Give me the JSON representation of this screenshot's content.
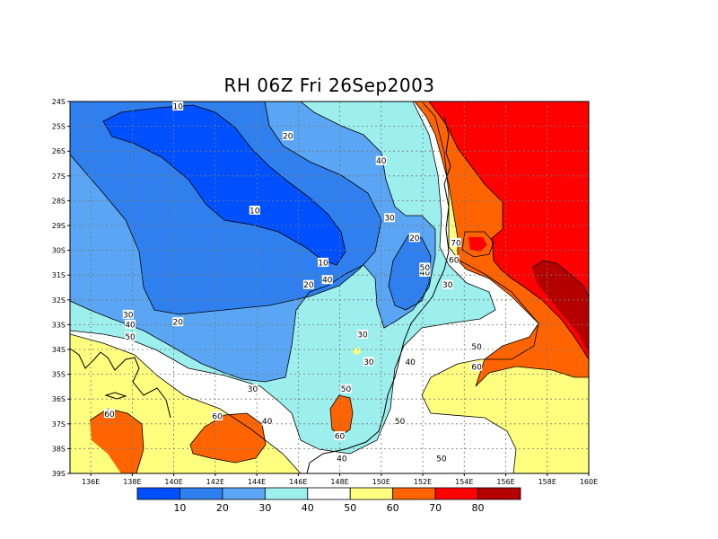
{
  "map": {
    "title": "RH 06Z Fri 26Sep2003",
    "lat_ticks": [
      "24S",
      "25S",
      "26S",
      "27S",
      "28S",
      "29S",
      "30S",
      "31S",
      "32S",
      "33S",
      "34S",
      "35S",
      "36S",
      "37S",
      "38S",
      "39S"
    ],
    "lon_ticks": [
      "136E",
      "138E",
      "140E",
      "142E",
      "144E",
      "146E",
      "148E",
      "150E",
      "152E",
      "154E",
      "156E",
      "158E",
      "160E"
    ],
    "lon_range": [
      135,
      160
    ],
    "lat_range": [
      -24,
      -39
    ],
    "gridlines": true,
    "contour_labels": [
      {
        "text": "10",
        "lon": 140.2,
        "lat": -24.2
      },
      {
        "text": "10",
        "lon": 143.9,
        "lat": -28.4
      },
      {
        "text": "10",
        "lon": 147.2,
        "lat": -30.5
      },
      {
        "text": "20",
        "lon": 145.5,
        "lat": -25.4
      },
      {
        "text": "20",
        "lon": 146.5,
        "lat": -31.4
      },
      {
        "text": "20",
        "lon": 140.2,
        "lat": -32.9
      },
      {
        "text": "20",
        "lon": 151.6,
        "lat": -29.5
      },
      {
        "text": "30",
        "lon": 150.4,
        "lat": -28.7
      },
      {
        "text": "30",
        "lon": 153.2,
        "lat": -31.4
      },
      {
        "text": "30",
        "lon": 137.8,
        "lat": -32.6
      },
      {
        "text": "30",
        "lon": 143.8,
        "lat": -35.6
      },
      {
        "text": "30",
        "lon": 149.1,
        "lat": -33.4
      },
      {
        "text": "30",
        "lon": 149.4,
        "lat": -34.5
      },
      {
        "text": "40",
        "lon": 150.0,
        "lat": -26.4
      },
      {
        "text": "40",
        "lon": 137.9,
        "lat": -33.0
      },
      {
        "text": "40",
        "lon": 147.4,
        "lat": -31.2
      },
      {
        "text": "40",
        "lon": 152.1,
        "lat": -30.9
      },
      {
        "text": "40",
        "lon": 151.4,
        "lat": -34.5
      },
      {
        "text": "40",
        "lon": 144.5,
        "lat": -36.9
      },
      {
        "text": "40",
        "lon": 148.1,
        "lat": -38.4
      },
      {
        "text": "50",
        "lon": 152.1,
        "lat": -30.7
      },
      {
        "text": "50",
        "lon": 137.9,
        "lat": -33.5
      },
      {
        "text": "50",
        "lon": 154.6,
        "lat": -33.9
      },
      {
        "text": "50",
        "lon": 148.3,
        "lat": -35.6
      },
      {
        "text": "50",
        "lon": 150.9,
        "lat": -36.9
      },
      {
        "text": "50",
        "lon": 152.9,
        "lat": -38.4
      },
      {
        "text": "60",
        "lon": 153.5,
        "lat": -30.4
      },
      {
        "text": "60",
        "lon": 136.9,
        "lat": -36.6
      },
      {
        "text": "60",
        "lon": 142.1,
        "lat": -36.7
      },
      {
        "text": "60",
        "lon": 148.0,
        "lat": -37.5
      },
      {
        "text": "60",
        "lon": 154.6,
        "lat": -34.7
      },
      {
        "text": "70",
        "lon": 153.6,
        "lat": -29.7
      }
    ]
  },
  "colorbar": {
    "colors": [
      "#0050ff",
      "#2f80ee",
      "#5aa6f4",
      "#9defee",
      "#ffffff",
      "#ffff7f",
      "#ff6400",
      "#ff0000",
      "#b50000"
    ],
    "labels": [
      "10",
      "20",
      "30",
      "40",
      "50",
      "60",
      "70",
      "80"
    ]
  }
}
